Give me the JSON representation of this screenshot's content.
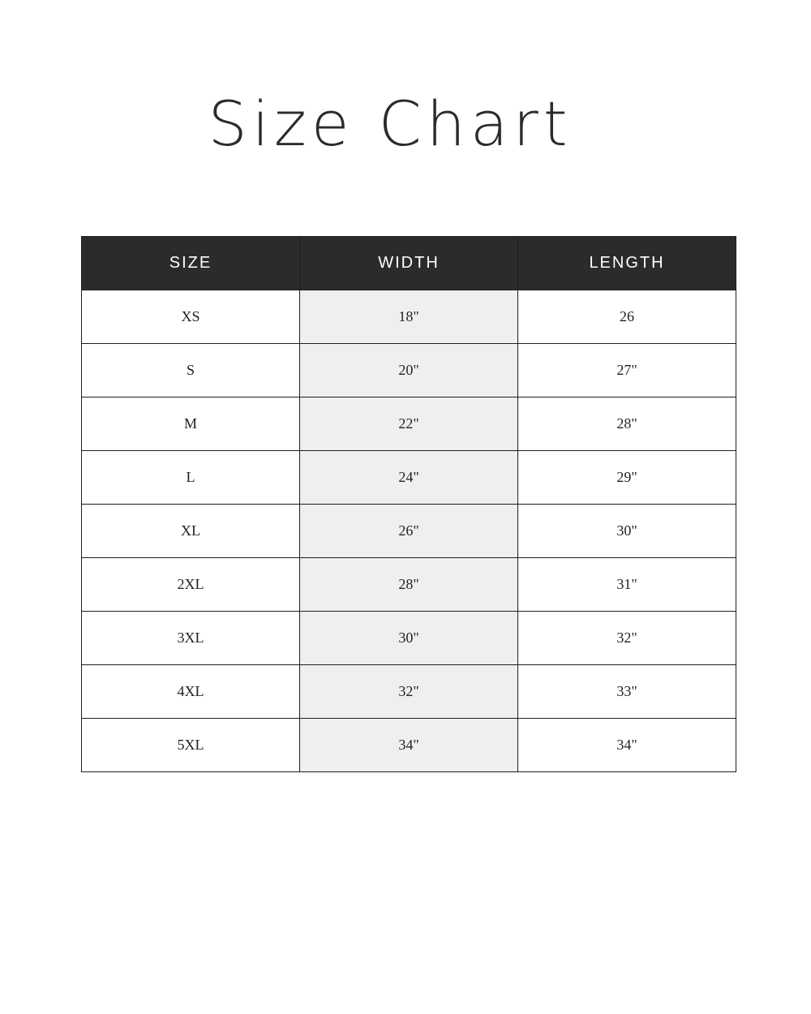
{
  "title": "Size Chart",
  "table": {
    "headers": [
      "SIZE",
      "WIDTH",
      "LENGTH"
    ],
    "rows": [
      [
        "XS",
        "18\"",
        "26"
      ],
      [
        "S",
        "20\"",
        "27\""
      ],
      [
        "M",
        "22\"",
        "28\""
      ],
      [
        "L",
        "24\"",
        "29\""
      ],
      [
        "XL",
        "26\"",
        "30\""
      ],
      [
        "2XL",
        "28\"",
        "31\""
      ],
      [
        "3XL",
        "30\"",
        "32\""
      ],
      [
        "4XL",
        "32\"",
        "33\""
      ],
      [
        "5XL",
        "34\"",
        "34\""
      ]
    ]
  },
  "colors": {
    "header_bg": "#2b2b2b",
    "width_column_bg": "#efefef"
  }
}
